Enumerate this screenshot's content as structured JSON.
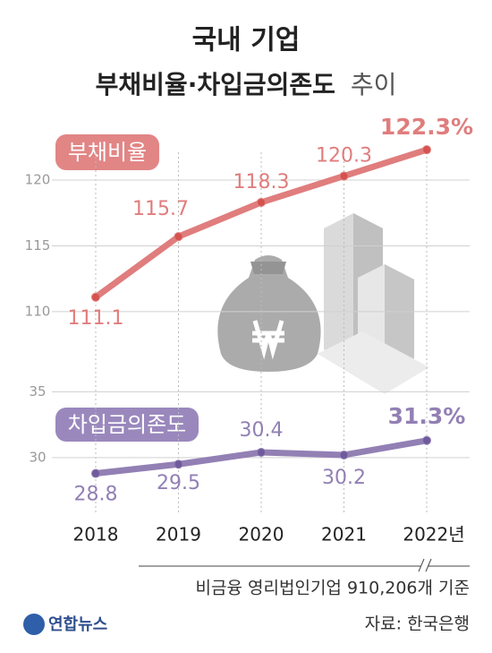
{
  "title": {
    "line1": "국내 기업",
    "line2": "부채비율·차입금의존도",
    "line2_suffix": "추이"
  },
  "x_axis": {
    "categories": [
      "2018",
      "2019",
      "2020",
      "2021",
      "2022년"
    ]
  },
  "chart_data": [
    {
      "type": "line",
      "series": [
        {
          "name": "부채비율",
          "color": "#e07d7d",
          "values": [
            111.1,
            115.7,
            118.3,
            120.3,
            122.3
          ],
          "value_labels": [
            "111.1",
            "115.7",
            "118.3",
            "120.3",
            "122.3%"
          ]
        }
      ],
      "ylim": [
        107,
        125
      ],
      "yticks": [
        110,
        115,
        120
      ],
      "grid": true
    },
    {
      "type": "line",
      "series": [
        {
          "name": "차입금의존도",
          "color": "#9280b4",
          "values": [
            28.8,
            29.5,
            30.4,
            30.2,
            31.3
          ],
          "value_labels": [
            "28.8",
            "29.5",
            "30.4",
            "30.2",
            "31.3%"
          ]
        }
      ],
      "ylim": [
        27,
        35.5
      ],
      "yticks": [
        30,
        35
      ],
      "grid": true
    }
  ],
  "note": "비금융 영리법인기업 910,206개 기준",
  "source": "자료: 한국은행",
  "logo": "연합뉴스"
}
